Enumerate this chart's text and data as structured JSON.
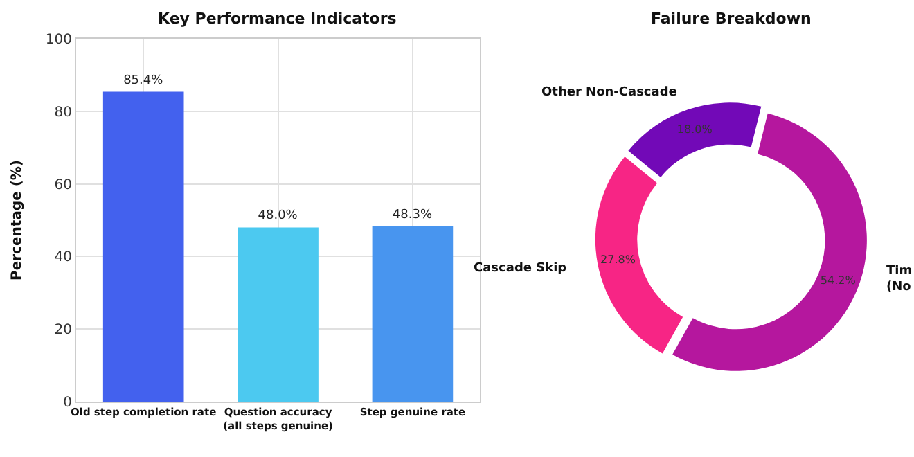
{
  "chart_data": [
    {
      "type": "bar",
      "title": "Key Performance Indicators",
      "ylabel": "Percentage (%)",
      "categories": [
        "Old step completion rate",
        "Question accuracy\n(all steps genuine)",
        "Step genuine rate"
      ],
      "values": [
        85.4,
        48.0,
        48.3
      ],
      "colors": [
        "#4361ee",
        "#4cc9f0",
        "#4895ef"
      ],
      "value_labels": [
        "85.4%",
        "48.0%",
        "48.3%"
      ],
      "ylim": [
        0,
        100
      ],
      "yticks": [
        0,
        20,
        40,
        60,
        80,
        100
      ],
      "grid": true
    },
    {
      "type": "donut",
      "title": "Failure Breakdown",
      "categories": [
        "Tim\n(No",
        "Cascade Skip",
        "Other Non-Cascade"
      ],
      "values": [
        54.2,
        27.8,
        18.0
      ],
      "colors": [
        "#b5179e",
        "#f72585",
        "#7209b7"
      ],
      "value_labels": [
        "54.2%",
        "27.8%",
        "18.0%"
      ]
    }
  ]
}
